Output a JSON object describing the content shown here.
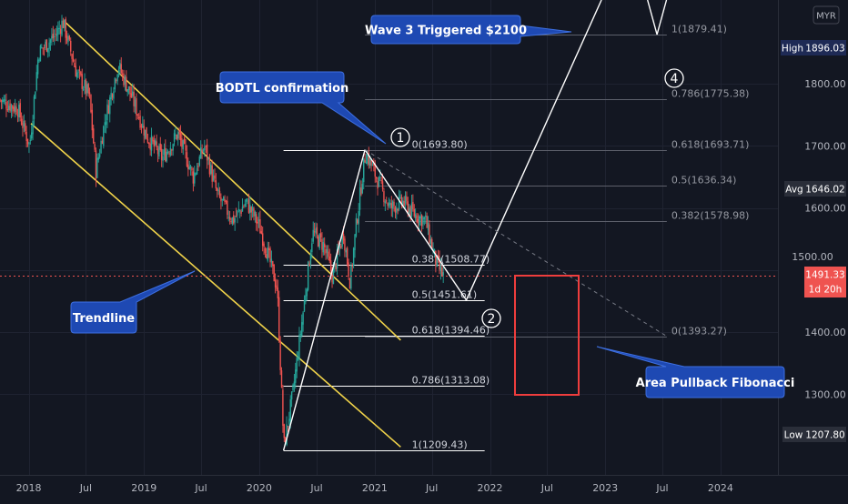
{
  "currency": "MYR",
  "colors": {
    "background": "#131722",
    "up": "#26a69a",
    "down": "#ef5350",
    "channel": "#f0d34a",
    "callout": "#1e49b3",
    "price_line": "#ef5350",
    "high_badge": "#1e2a55",
    "avg_badge": "#2a2e39",
    "last_badge": "#ef5350"
  },
  "callouts": {
    "wave3": "Wave 3 Triggered $2100",
    "bodtl": "BODTL confirmation",
    "trendline": "Trendline",
    "area": "Area Pullback Fibonacci"
  },
  "wave_labels": {
    "w1": "1",
    "w2": "2",
    "w4": "4"
  },
  "badges": {
    "high_label": "High",
    "high_value": "1896.03",
    "avg_label": "Avg",
    "avg_value": "1646.02",
    "last_value": "1491.33",
    "last_countdown": "1d 20h",
    "low_label": "Low",
    "low_value": "1207.80",
    "hidden_tick": "1500.00"
  },
  "fib_retracement": [
    {
      "label": "0(1693.80)",
      "price": 1693.8
    },
    {
      "label": "0.382(1508.77)",
      "price": 1508.77
    },
    {
      "label": "0.5(1451.61)",
      "price": 1451.61
    },
    {
      "label": "0.618(1394.46)",
      "price": 1394.46
    },
    {
      "label": "0.786(1313.08)",
      "price": 1313.08
    },
    {
      "label": "1(1209.43)",
      "price": 1209.43
    }
  ],
  "fib_extension": [
    {
      "label": "1(1879.41)",
      "price": 1879.41
    },
    {
      "label": "0.786(1775.38)",
      "price": 1775.38
    },
    {
      "label": "0.618(1693.71)",
      "price": 1693.71
    },
    {
      "label": "0.5(1636.34)",
      "price": 1636.34
    },
    {
      "label": "0.382(1578.98)",
      "price": 1578.98
    },
    {
      "label": "0(1393.27)",
      "price": 1393.27
    }
  ],
  "chart_data": {
    "type": "candlestick",
    "symbol_currency": "MYR",
    "y_axis": {
      "range": [
        1170,
        1935
      ],
      "ticks": [
        1300,
        1400,
        1500,
        1600,
        1700,
        1800
      ],
      "tick_labels": [
        "1300.00",
        "1400.00",
        "1500.00",
        "1600.00",
        "1700.00",
        "1800.00"
      ]
    },
    "x_axis": {
      "range": [
        "2017-10-02",
        "2024-07-01"
      ],
      "ticks": [
        "2018-01-01",
        "2018-07-01",
        "2019-01-01",
        "2019-07-01",
        "2020-01-01",
        "2020-07-01",
        "2021-01-01",
        "2021-07-01",
        "2022-01-01",
        "2022-07-01",
        "2023-01-01",
        "2023-07-01",
        "2024-01-01"
      ],
      "tick_labels": [
        "2018",
        "Jul",
        "2019",
        "Jul",
        "2020",
        "Jul",
        "2021",
        "Jul",
        "2022",
        "Jul",
        "2023",
        "Jul",
        "2024"
      ]
    },
    "price_anchors": [
      [
        "2017-10-01",
        1775
      ],
      [
        "2017-12-01",
        1760
      ],
      [
        "2018-01-08",
        1700
      ],
      [
        "2018-02-05",
        1850
      ],
      [
        "2018-04-02",
        1880
      ],
      [
        "2018-04-23",
        1900
      ],
      [
        "2018-06-04",
        1820
      ],
      [
        "2018-07-16",
        1780
      ],
      [
        "2018-08-06",
        1660
      ],
      [
        "2018-09-03",
        1740
      ],
      [
        "2018-10-15",
        1830
      ],
      [
        "2018-11-26",
        1780
      ],
      [
        "2019-01-14",
        1715
      ],
      [
        "2019-03-04",
        1680
      ],
      [
        "2019-04-22",
        1720
      ],
      [
        "2019-06-10",
        1650
      ],
      [
        "2019-07-15",
        1700
      ],
      [
        "2019-08-26",
        1620
      ],
      [
        "2019-10-14",
        1580
      ],
      [
        "2019-11-25",
        1610
      ],
      [
        "2020-01-06",
        1570
      ],
      [
        "2020-02-10",
        1510
      ],
      [
        "2020-03-02",
        1470
      ],
      [
        "2020-03-23",
        1215
      ],
      [
        "2020-04-20",
        1300
      ],
      [
        "2020-05-25",
        1440
      ],
      [
        "2020-06-22",
        1560
      ],
      [
        "2020-07-27",
        1540
      ],
      [
        "2020-08-24",
        1490
      ],
      [
        "2020-09-28",
        1560
      ],
      [
        "2020-10-19",
        1480
      ],
      [
        "2020-11-09",
        1580
      ],
      [
        "2020-12-07",
        1690
      ],
      [
        "2021-01-18",
        1640
      ],
      [
        "2021-02-22",
        1600
      ],
      [
        "2021-04-05",
        1610
      ],
      [
        "2021-05-10",
        1590
      ],
      [
        "2021-06-14",
        1580
      ],
      [
        "2021-07-19",
        1510
      ],
      [
        "2021-08-09",
        1491
      ]
    ],
    "annotations": [
      {
        "type": "line",
        "name": "downtrend channel upper",
        "from": [
          "2018-04-23",
          1901
        ],
        "to": [
          "2021-03-24",
          1387
        ]
      },
      {
        "type": "line",
        "name": "downtrend channel lower",
        "from": [
          "2018-01-08",
          1736
        ],
        "to": [
          "2021-03-24",
          1215
        ]
      },
      {
        "type": "line",
        "name": "wave 1",
        "from": [
          "2020-03-18",
          1209.43
        ],
        "to": [
          "2020-12-01",
          1693.8
        ]
      },
      {
        "type": "line",
        "name": "wave 2",
        "from": [
          "2020-12-01",
          1693.8
        ],
        "to": [
          "2021-10-18",
          1451.61
        ]
      },
      {
        "type": "line",
        "name": "wave 3",
        "from": [
          "2021-10-18",
          1451.61
        ],
        "to": [
          "2022-12-20",
          1935
        ]
      },
      {
        "type": "line",
        "name": "wave 4 leg",
        "from": [
          "2023-05-15",
          1935
        ],
        "to": [
          "2023-06-14",
          1879.41
        ]
      },
      {
        "type": "line",
        "name": "wave 5 leg",
        "from": [
          "2023-06-14",
          1879.41
        ],
        "to": [
          "2023-07-14",
          1935
        ]
      },
      {
        "type": "dashed-line",
        "name": "projection",
        "from": [
          "2020-12-01",
          1693.8
        ],
        "to": [
          "2023-07-15",
          1393.27
        ]
      }
    ]
  }
}
